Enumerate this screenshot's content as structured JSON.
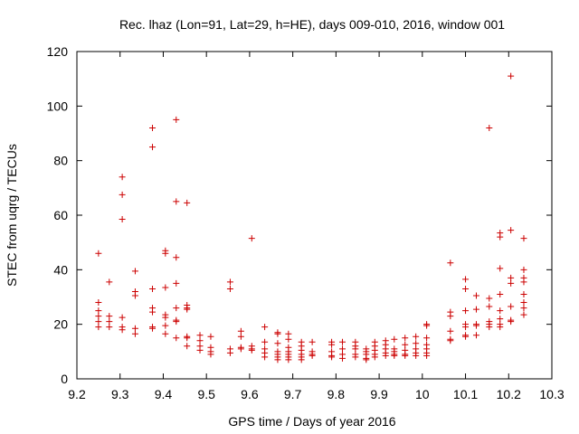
{
  "chart_data": {
    "type": "scatter",
    "title": "Rec. lhaz (Lon=91, Lat=29, h=HE), days 009-010, 2016, window 001",
    "xlabel": "GPS time / Days of year 2016",
    "ylabel": "STEC from uqrg / TECUs",
    "xlim": [
      9.2,
      10.3
    ],
    "ylim": [
      0,
      120
    ],
    "xticks": [
      "9.2",
      "9.3",
      "9.4",
      "9.5",
      "9.6",
      "9.7",
      "9.8",
      "9.9",
      "10",
      "10.1",
      "10.2",
      "10.3"
    ],
    "yticks": [
      "0",
      "20",
      "40",
      "60",
      "80",
      "100",
      "120"
    ],
    "grid": false,
    "marker": "plus",
    "color": "#cc0000",
    "points": [
      [
        9.25,
        46
      ],
      [
        9.25,
        28
      ],
      [
        9.25,
        25
      ],
      [
        9.25,
        23
      ],
      [
        9.25,
        21
      ],
      [
        9.25,
        19
      ],
      [
        9.275,
        35.5
      ],
      [
        9.275,
        23
      ],
      [
        9.275,
        21
      ],
      [
        9.275,
        19
      ],
      [
        9.305,
        74
      ],
      [
        9.305,
        67.5
      ],
      [
        9.305,
        58.5
      ],
      [
        9.305,
        22.5
      ],
      [
        9.305,
        19
      ],
      [
        9.305,
        18
      ],
      [
        9.335,
        39.5
      ],
      [
        9.335,
        32
      ],
      [
        9.335,
        30.5
      ],
      [
        9.335,
        18.5
      ],
      [
        9.335,
        16.5
      ],
      [
        9.375,
        92
      ],
      [
        9.375,
        85
      ],
      [
        9.375,
        33
      ],
      [
        9.375,
        26
      ],
      [
        9.375,
        24.5
      ],
      [
        9.375,
        19
      ],
      [
        9.375,
        18.5
      ],
      [
        9.405,
        47
      ],
      [
        9.405,
        46
      ],
      [
        9.405,
        33.5
      ],
      [
        9.405,
        23.5
      ],
      [
        9.405,
        22.5
      ],
      [
        9.405,
        19.5
      ],
      [
        9.405,
        16.5
      ],
      [
        9.43,
        95
      ],
      [
        9.43,
        65
      ],
      [
        9.43,
        44.5
      ],
      [
        9.43,
        35
      ],
      [
        9.43,
        26
      ],
      [
        9.43,
        21.5
      ],
      [
        9.43,
        21
      ],
      [
        9.43,
        15
      ],
      [
        9.455,
        64.5
      ],
      [
        9.455,
        27
      ],
      [
        9.455,
        26
      ],
      [
        9.455,
        25.5
      ],
      [
        9.455,
        15.5
      ],
      [
        9.455,
        15
      ],
      [
        9.455,
        12
      ],
      [
        9.485,
        16
      ],
      [
        9.485,
        14
      ],
      [
        9.485,
        12
      ],
      [
        9.485,
        10.5
      ],
      [
        9.51,
        15.5
      ],
      [
        9.51,
        11.5
      ],
      [
        9.51,
        10
      ],
      [
        9.51,
        9
      ],
      [
        9.555,
        35.5
      ],
      [
        9.555,
        33
      ],
      [
        9.555,
        11
      ],
      [
        9.555,
        9.5
      ],
      [
        9.58,
        17.5
      ],
      [
        9.58,
        15.5
      ],
      [
        9.58,
        11.5
      ],
      [
        9.58,
        11
      ],
      [
        9.605,
        51.5
      ],
      [
        9.605,
        12
      ],
      [
        9.605,
        11
      ],
      [
        9.605,
        10.5
      ],
      [
        9.635,
        19
      ],
      [
        9.635,
        13.5
      ],
      [
        9.635,
        11
      ],
      [
        9.635,
        9.5
      ],
      [
        9.635,
        8
      ],
      [
        9.665,
        17
      ],
      [
        9.665,
        16.5
      ],
      [
        9.665,
        13
      ],
      [
        9.665,
        10
      ],
      [
        9.665,
        9
      ],
      [
        9.665,
        8
      ],
      [
        9.665,
        7
      ],
      [
        9.69,
        16.5
      ],
      [
        9.69,
        14.5
      ],
      [
        9.69,
        11.5
      ],
      [
        9.69,
        10
      ],
      [
        9.69,
        9
      ],
      [
        9.69,
        8
      ],
      [
        9.69,
        7
      ],
      [
        9.72,
        13.5
      ],
      [
        9.72,
        12
      ],
      [
        9.72,
        10.5
      ],
      [
        9.72,
        9
      ],
      [
        9.72,
        8
      ],
      [
        9.72,
        7
      ],
      [
        9.745,
        13.5
      ],
      [
        9.745,
        10
      ],
      [
        9.745,
        9
      ],
      [
        9.745,
        8.5
      ],
      [
        9.79,
        13.5
      ],
      [
        9.79,
        12.5
      ],
      [
        9.79,
        10
      ],
      [
        9.79,
        8.5
      ],
      [
        9.79,
        8
      ],
      [
        9.815,
        13.5
      ],
      [
        9.815,
        11
      ],
      [
        9.815,
        9
      ],
      [
        9.815,
        7.5
      ],
      [
        9.845,
        13.5
      ],
      [
        9.845,
        12
      ],
      [
        9.845,
        11
      ],
      [
        9.845,
        9
      ],
      [
        9.845,
        8
      ],
      [
        9.87,
        11
      ],
      [
        9.87,
        10
      ],
      [
        9.87,
        9
      ],
      [
        9.87,
        7.5
      ],
      [
        9.87,
        7
      ],
      [
        9.89,
        13.5
      ],
      [
        9.89,
        12
      ],
      [
        9.89,
        10.5
      ],
      [
        9.89,
        9
      ],
      [
        9.89,
        8
      ],
      [
        9.915,
        14
      ],
      [
        9.915,
        12.5
      ],
      [
        9.915,
        11
      ],
      [
        9.915,
        9.5
      ],
      [
        9.915,
        8.5
      ],
      [
        9.935,
        14.5
      ],
      [
        9.935,
        11
      ],
      [
        9.935,
        10
      ],
      [
        9.935,
        9
      ],
      [
        9.935,
        8.5
      ],
      [
        9.96,
        15
      ],
      [
        9.96,
        12.5
      ],
      [
        9.96,
        10.5
      ],
      [
        9.96,
        9
      ],
      [
        9.96,
        8.5
      ],
      [
        9.985,
        15.5
      ],
      [
        9.985,
        13
      ],
      [
        9.985,
        11
      ],
      [
        9.985,
        9.5
      ],
      [
        9.985,
        8.5
      ],
      [
        10.01,
        20
      ],
      [
        10.01,
        19.5
      ],
      [
        10.01,
        15
      ],
      [
        10.01,
        12.5
      ],
      [
        10.01,
        11
      ],
      [
        10.01,
        9.5
      ],
      [
        10.01,
        8.5
      ],
      [
        10.065,
        42.5
      ],
      [
        10.065,
        24.5
      ],
      [
        10.065,
        23
      ],
      [
        10.065,
        17.5
      ],
      [
        10.065,
        14.5
      ],
      [
        10.065,
        14
      ],
      [
        10.1,
        36.5
      ],
      [
        10.1,
        33
      ],
      [
        10.1,
        25
      ],
      [
        10.1,
        20
      ],
      [
        10.1,
        19
      ],
      [
        10.1,
        16
      ],
      [
        10.1,
        15.5
      ],
      [
        10.125,
        30.5
      ],
      [
        10.125,
        25.5
      ],
      [
        10.125,
        20
      ],
      [
        10.125,
        19.5
      ],
      [
        10.125,
        16
      ],
      [
        10.155,
        92
      ],
      [
        10.155,
        29.5
      ],
      [
        10.155,
        26.5
      ],
      [
        10.155,
        21
      ],
      [
        10.155,
        20
      ],
      [
        10.155,
        19
      ],
      [
        10.18,
        53.5
      ],
      [
        10.18,
        52
      ],
      [
        10.18,
        40.5
      ],
      [
        10.18,
        31
      ],
      [
        10.18,
        25
      ],
      [
        10.18,
        22
      ],
      [
        10.18,
        20
      ],
      [
        10.18,
        19
      ],
      [
        10.205,
        111
      ],
      [
        10.205,
        54.5
      ],
      [
        10.205,
        37
      ],
      [
        10.205,
        35
      ],
      [
        10.205,
        26.5
      ],
      [
        10.205,
        21.5
      ],
      [
        10.205,
        21
      ],
      [
        10.235,
        51.5
      ],
      [
        10.235,
        40
      ],
      [
        10.235,
        37
      ],
      [
        10.235,
        35.5
      ],
      [
        10.235,
        31
      ],
      [
        10.235,
        28
      ],
      [
        10.235,
        26
      ],
      [
        10.235,
        23.5
      ]
    ]
  }
}
